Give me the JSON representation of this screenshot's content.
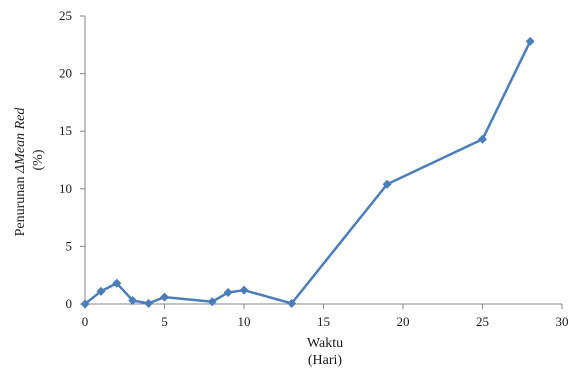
{
  "chart_data": {
    "type": "line",
    "title": "",
    "xlabel_line1": "Waktu",
    "xlabel_line2": "(Hari)",
    "ylabel_prefix": "Penurunan ",
    "ylabel_italic": "ΔMean Red",
    "ylabel_line2": "(%)",
    "xlim": [
      0,
      30
    ],
    "ylim": [
      0,
      25
    ],
    "x_ticks": [
      0,
      5,
      10,
      15,
      20,
      25,
      30
    ],
    "y_ticks": [
      0,
      5,
      10,
      15,
      20,
      25
    ],
    "grid": false,
    "legend": "none",
    "series": [
      {
        "color": "#4a7ebb",
        "marker": "diamond",
        "x": [
          0,
          1,
          2,
          3,
          4,
          5,
          8,
          9,
          10,
          13,
          19,
          25,
          28
        ],
        "y": [
          0,
          1.1,
          1.8,
          0.3,
          0.05,
          0.6,
          0.2,
          1.0,
          1.2,
          0.05,
          10.4,
          14.3,
          22.8
        ]
      }
    ]
  }
}
